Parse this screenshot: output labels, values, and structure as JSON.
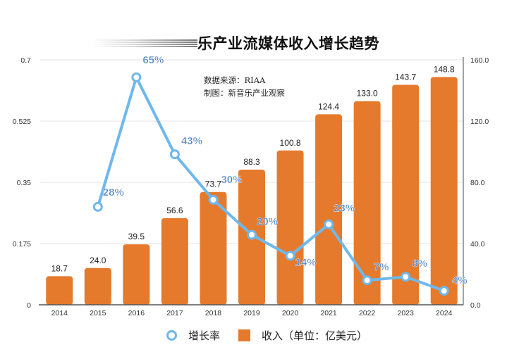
{
  "chart_data": {
    "type": "bar",
    "title": "乐产业流媒体收入增长趋势",
    "annotations": [
      "数据来源：RIAA",
      "制图：新音乐产业观察"
    ],
    "categories": [
      "2014",
      "2015",
      "2016",
      "2017",
      "2018",
      "2019",
      "2020",
      "2021",
      "2022",
      "2023",
      "2024"
    ],
    "series": [
      {
        "name": "收入（单位：亿美元）",
        "type": "bar",
        "axis": "right",
        "color": "#E57A2C",
        "values": [
          18.7,
          24.0,
          39.5,
          56.6,
          73.7,
          88.3,
          100.8,
          124.4,
          133.0,
          143.7,
          148.8
        ],
        "labels": [
          "18.7",
          "24.0",
          "39.5",
          "56.6",
          "73.7",
          "88.3",
          "100.8",
          "124.4",
          "133.0",
          "143.7",
          "148.8"
        ]
      },
      {
        "name": "增长率",
        "type": "line",
        "axis": "left",
        "color": "#6FB8EC",
        "values": [
          null,
          0.28,
          0.65,
          0.43,
          0.3,
          0.2,
          0.14,
          0.23,
          0.07,
          0.08,
          0.04
        ],
        "labels": [
          null,
          "28%",
          "65%",
          "43%",
          "30%",
          "20%",
          "14%",
          "23%",
          "7%",
          "8%",
          "4%"
        ]
      }
    ],
    "left_axis": {
      "ylim": [
        0,
        0.7
      ],
      "ticks": [
        "0",
        "0.175",
        "0.35",
        "0.525",
        "0.7"
      ]
    },
    "right_axis": {
      "ylim": [
        0,
        160
      ],
      "ticks": [
        "0.0",
        "40.0",
        "80.0",
        "120.0",
        "160.0"
      ]
    },
    "xlabel": "",
    "ylabel": "",
    "grid": true,
    "legend": {
      "position": "bottom",
      "items": [
        {
          "label": "增长率",
          "marker": "ring",
          "color": "#6FB8EC"
        },
        {
          "label": "收入（单位：亿美元）",
          "marker": "square",
          "color": "#E57A2C"
        }
      ]
    },
    "label_color": "#4A7FC4"
  }
}
